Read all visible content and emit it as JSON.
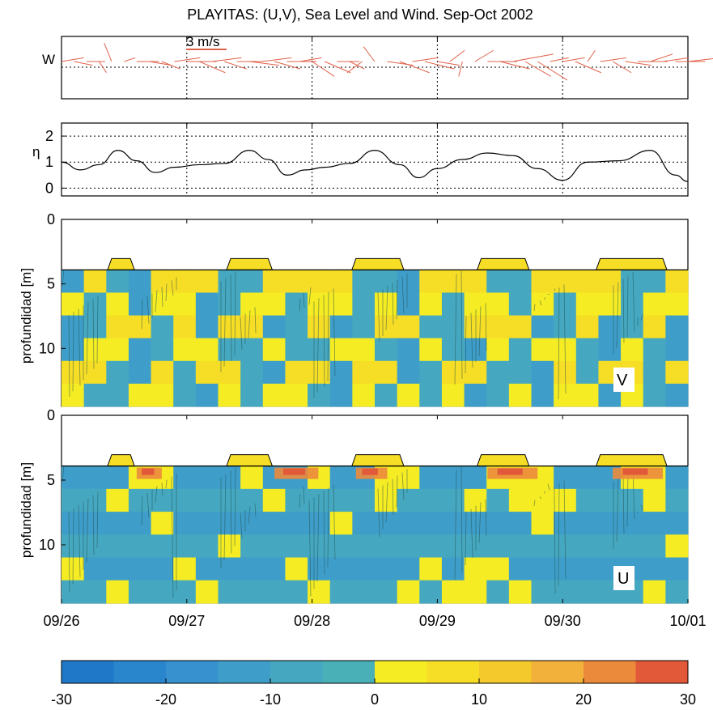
{
  "chart_data": [
    {
      "type": "line",
      "title": "PLAYITAS: (U,V), Sea Level and Wind.  Sep-Oct 2002",
      "panel": "wind",
      "ylabel": "W",
      "scale_label": "3 m/s",
      "x_ticks": [
        "09/26",
        "09/27",
        "09/28",
        "09/29",
        "09/30",
        "10/01"
      ],
      "color": "#e0614a",
      "series": [
        {
          "t": [
            0.0,
            0.1,
            0.2,
            0.3,
            0.4,
            0.5,
            0.6,
            0.7,
            0.8,
            0.9,
            1.0,
            1.1,
            1.2,
            1.3,
            1.4,
            1.5,
            1.6,
            1.7,
            1.8,
            1.9,
            2.0,
            2.1,
            2.2,
            2.3,
            2.4,
            2.5,
            2.6,
            2.7,
            2.8,
            2.9,
            3.0,
            3.1,
            3.2,
            3.3,
            3.4,
            3.5,
            3.6,
            3.7,
            3.8,
            3.9,
            4.0,
            4.1,
            4.2,
            4.3,
            4.4,
            4.5,
            4.6,
            4.7,
            4.8,
            4.9,
            5.0
          ],
          "u": [
            3.0,
            2.5,
            2.5,
            1.0,
            -1.0,
            1.5,
            3.0,
            3.0,
            2.5,
            3.5,
            4.0,
            3.5,
            4.0,
            3.0,
            3.5,
            4.0,
            4.0,
            3.5,
            4.0,
            3.0,
            3.0,
            3.5,
            3.0,
            2.0,
            -2.0,
            -1.5,
            3.5,
            4.0,
            3.5,
            4.0,
            3.0,
            2.0,
            -0.5,
            2.5,
            4.0,
            4.0,
            5.5,
            3.5,
            4.0,
            2.5,
            3.0,
            3.5,
            1.0,
            3.5,
            2.5,
            3.5,
            4.0,
            3.0,
            3.5,
            4.0,
            4.5
          ],
          "v": [
            0.5,
            -0.5,
            0.0,
            -1.5,
            2.5,
            0.5,
            0.0,
            -0.5,
            -1.0,
            0.5,
            0.0,
            -1.5,
            0.5,
            -1.0,
            0.0,
            -0.5,
            0.5,
            -1.0,
            0.0,
            0.5,
            -2.0,
            -1.5,
            0.0,
            -1.0,
            -1.5,
            2.0,
            -0.5,
            -1.5,
            0.5,
            -1.0,
            -0.5,
            1.5,
            -2.0,
            1.5,
            0.0,
            -1.0,
            1.0,
            -2.0,
            -2.5,
            0.5,
            0.5,
            -1.5,
            1.5,
            0.5,
            -1.5,
            -0.5,
            0.0,
            1.0,
            0.5,
            0.0,
            0.5
          ]
        }
      ]
    },
    {
      "type": "line",
      "panel": "sea_level",
      "ylabel": "η",
      "y_ticks": [
        "0",
        "1",
        "2"
      ],
      "ylim": [
        -0.3,
        2.5
      ],
      "grid": true,
      "series": [
        {
          "x": [
            0.0,
            0.15,
            0.3,
            0.45,
            0.6,
            0.75,
            0.9,
            1.1,
            1.3,
            1.5,
            1.65,
            1.8,
            1.95,
            2.1,
            2.3,
            2.5,
            2.7,
            2.85,
            3.0,
            3.2,
            3.4,
            3.6,
            3.8,
            4.0,
            4.2,
            4.45,
            4.7,
            4.9,
            5.0
          ],
          "y": [
            1.0,
            0.7,
            0.9,
            1.45,
            1.05,
            0.6,
            0.8,
            0.9,
            0.95,
            1.45,
            1.1,
            0.5,
            0.7,
            0.8,
            0.95,
            1.45,
            0.9,
            0.4,
            0.75,
            1.1,
            1.35,
            1.25,
            0.75,
            0.3,
            1.0,
            1.05,
            1.45,
            0.5,
            0.25
          ]
        }
      ]
    },
    {
      "type": "heatmap",
      "panel": "V",
      "label": "V",
      "ylabel": "profundidad [m]",
      "y_ticks": [
        "0",
        "5",
        "10"
      ],
      "ylim": [
        0,
        14.5
      ],
      "x_ticks": [
        "09/26",
        "09/27",
        "09/28",
        "09/29",
        "09/30",
        "10/01"
      ],
      "surface_bumps_days": [
        [
          0.4,
          0.55
        ],
        [
          1.35,
          1.65
        ],
        [
          2.35,
          2.7
        ],
        [
          3.35,
          3.7
        ],
        [
          4.3,
          4.8
        ]
      ],
      "bands": [
        [
          0,
          1,
          0,
          0,
          1,
          1,
          1,
          0,
          0,
          1,
          1,
          1,
          1,
          0,
          0,
          0,
          1,
          1,
          1,
          0,
          0,
          1,
          1,
          1,
          1,
          0,
          0,
          1
        ],
        [
          1,
          0,
          1,
          0,
          1,
          1,
          0,
          0,
          1,
          1,
          0,
          1,
          1,
          0,
          1,
          0,
          1,
          0,
          1,
          1,
          0,
          1,
          0,
          1,
          1,
          0,
          1,
          1
        ],
        [
          0,
          0,
          1,
          1,
          0,
          1,
          0,
          1,
          1,
          0,
          0,
          1,
          0,
          0,
          1,
          1,
          0,
          0,
          1,
          1,
          1,
          0,
          0,
          1,
          0,
          0,
          1,
          0
        ],
        [
          0,
          1,
          1,
          0,
          0,
          1,
          1,
          0,
          0,
          1,
          0,
          0,
          1,
          1,
          0,
          0,
          1,
          0,
          0,
          1,
          0,
          1,
          1,
          0,
          0,
          1,
          0,
          0
        ],
        [
          1,
          1,
          0,
          0,
          1,
          0,
          1,
          1,
          0,
          0,
          1,
          1,
          0,
          1,
          1,
          0,
          0,
          1,
          1,
          0,
          0,
          0,
          1,
          0,
          1,
          1,
          0,
          1
        ],
        [
          1,
          0,
          0,
          1,
          1,
          0,
          0,
          1,
          0,
          1,
          1,
          0,
          0,
          1,
          0,
          1,
          0,
          1,
          0,
          0,
          1,
          0,
          1,
          1,
          0,
          1,
          0,
          0
        ]
      ]
    },
    {
      "type": "heatmap",
      "panel": "U",
      "label": "U",
      "ylabel": "profundidad [m]",
      "y_ticks": [
        "0",
        "5",
        "10"
      ],
      "ylim": [
        0,
        14.5
      ],
      "x_ticks": [
        "09/26",
        "09/27",
        "09/28",
        "09/29",
        "09/30",
        "10/01"
      ],
      "surface_bumps_days": [
        [
          0.4,
          0.55
        ],
        [
          1.35,
          1.65
        ],
        [
          2.35,
          2.7
        ],
        [
          3.35,
          3.7
        ],
        [
          4.3,
          4.8
        ]
      ],
      "hot_spots_days": [
        [
          0.6,
          0.8
        ],
        [
          1.7,
          2.05
        ],
        [
          2.35,
          2.6
        ],
        [
          3.4,
          3.8
        ],
        [
          4.4,
          4.8
        ]
      ],
      "bands": [
        [
          0,
          0,
          0,
          1,
          1,
          0,
          0,
          0,
          1,
          0,
          0,
          1,
          0,
          0,
          1,
          1,
          0,
          0,
          0,
          1,
          1,
          1,
          0,
          0,
          0,
          1,
          1,
          0
        ],
        [
          0,
          0,
          1,
          0,
          0,
          0,
          0,
          0,
          0,
          1,
          0,
          0,
          0,
          0,
          1,
          0,
          0,
          0,
          1,
          0,
          1,
          1,
          1,
          0,
          0,
          0,
          1,
          0
        ],
        [
          0,
          0,
          0,
          0,
          1,
          0,
          0,
          0,
          0,
          0,
          0,
          0,
          1,
          0,
          0,
          0,
          0,
          0,
          0,
          0,
          0,
          1,
          0,
          0,
          0,
          0,
          0,
          0
        ],
        [
          0,
          0,
          0,
          0,
          0,
          0,
          0,
          1,
          0,
          0,
          0,
          0,
          0,
          0,
          0,
          0,
          0,
          0,
          0,
          0,
          0,
          0,
          0,
          0,
          0,
          0,
          0,
          1
        ],
        [
          1,
          0,
          0,
          0,
          0,
          1,
          0,
          0,
          0,
          0,
          1,
          0,
          0,
          0,
          0,
          0,
          1,
          0,
          1,
          1,
          0,
          0,
          0,
          0,
          0,
          0,
          0,
          0
        ],
        [
          0,
          0,
          1,
          0,
          0,
          0,
          1,
          0,
          0,
          0,
          0,
          1,
          0,
          0,
          0,
          1,
          0,
          1,
          1,
          0,
          1,
          0,
          0,
          0,
          0,
          0,
          1,
          0
        ]
      ]
    },
    {
      "type": "colorbar",
      "panel": "colorbar",
      "ticks": [
        "-30",
        "-20",
        "-10",
        "0",
        "10",
        "20",
        "30"
      ],
      "range": [
        -30,
        30
      ],
      "colors": [
        "#1f78c8",
        "#2a86cc",
        "#3891cf",
        "#3f9ec9",
        "#46a8c0",
        "#4ab0b8",
        "#f5ec23",
        "#f6dd26",
        "#f4c92b",
        "#f1b13a",
        "#ec8a3c",
        "#e2593a"
      ]
    }
  ]
}
